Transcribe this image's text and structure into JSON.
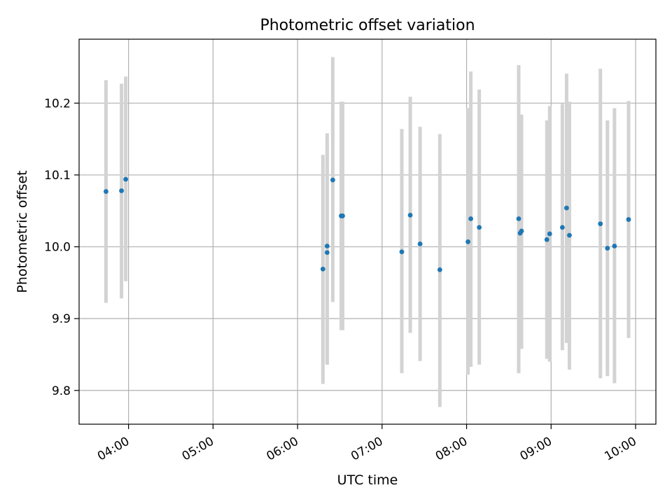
{
  "chart_data": {
    "type": "scatter",
    "title": "Photometric offset variation",
    "xlabel": "UTC time",
    "ylabel": "Photometric offset",
    "x_tick_labels": [
      "04:00",
      "05:00",
      "06:00",
      "07:00",
      "08:00",
      "09:00",
      "10:00"
    ],
    "x_ticks_hours": [
      4,
      5,
      6,
      7,
      8,
      9,
      10
    ],
    "y_tick_labels": [
      "9.8",
      "9.9",
      "10.0",
      "10.1",
      "10.2"
    ],
    "y_ticks": [
      9.8,
      9.9,
      10.0,
      10.1,
      10.2
    ],
    "xlim_hours": [
      3.415,
      10.24
    ],
    "ylim": [
      9.753,
      10.289
    ],
    "grid": true,
    "errorbar_color": "#d3d3d3",
    "marker_color": "#1f77b4",
    "points": [
      {
        "time": "03:44",
        "y": 10.077,
        "low": 9.922,
        "high": 10.232
      },
      {
        "time": "03:55",
        "y": 10.078,
        "low": 9.928,
        "high": 10.227
      },
      {
        "time": "03:58",
        "y": 10.094,
        "low": 9.952,
        "high": 10.237
      },
      {
        "time": "06:18",
        "y": 9.969,
        "low": 9.809,
        "high": 10.128
      },
      {
        "time": "06:21",
        "y": 10.001,
        "low": 9.836,
        "high": 10.158
      },
      {
        "time": "06:21",
        "y": 9.992,
        "low": 9.836,
        "high": 10.149
      },
      {
        "time": "06:25",
        "y": 10.093,
        "low": 9.923,
        "high": 10.264
      },
      {
        "time": "06:31",
        "y": 10.043,
        "low": 9.884,
        "high": 10.202
      },
      {
        "time": "06:32",
        "y": 10.043,
        "low": 9.884,
        "high": 10.202
      },
      {
        "time": "07:14",
        "y": 9.993,
        "low": 9.824,
        "high": 10.164
      },
      {
        "time": "07:20",
        "y": 10.044,
        "low": 9.88,
        "high": 10.209
      },
      {
        "time": "07:27",
        "y": 10.004,
        "low": 9.841,
        "high": 10.167
      },
      {
        "time": "07:41",
        "y": 9.968,
        "low": 9.777,
        "high": 10.157
      },
      {
        "time": "08:01",
        "y": 10.007,
        "low": 9.822,
        "high": 10.193
      },
      {
        "time": "08:03",
        "y": 10.039,
        "low": 9.833,
        "high": 10.244
      },
      {
        "time": "08:09",
        "y": 10.027,
        "low": 9.836,
        "high": 10.219
      },
      {
        "time": "08:37",
        "y": 10.039,
        "low": 9.824,
        "high": 10.253
      },
      {
        "time": "08:38",
        "y": 10.019,
        "low": 9.858,
        "high": 10.184
      },
      {
        "time": "08:39",
        "y": 10.022,
        "low": 9.858,
        "high": 10.184
      },
      {
        "time": "08:57",
        "y": 10.01,
        "low": 9.844,
        "high": 10.176
      },
      {
        "time": "08:59",
        "y": 10.018,
        "low": 9.84,
        "high": 10.196
      },
      {
        "time": "09:08",
        "y": 10.027,
        "low": 9.856,
        "high": 10.199
      },
      {
        "time": "09:11",
        "y": 10.054,
        "low": 9.866,
        "high": 10.241
      },
      {
        "time": "09:13",
        "y": 10.016,
        "low": 9.829,
        "high": 10.202
      },
      {
        "time": "09:35",
        "y": 10.032,
        "low": 9.817,
        "high": 10.248
      },
      {
        "time": "09:40",
        "y": 9.998,
        "low": 9.82,
        "high": 10.176
      },
      {
        "time": "09:45",
        "y": 10.001,
        "low": 9.81,
        "high": 10.193
      },
      {
        "time": "09:55",
        "y": 10.038,
        "low": 9.873,
        "high": 10.203
      }
    ]
  }
}
